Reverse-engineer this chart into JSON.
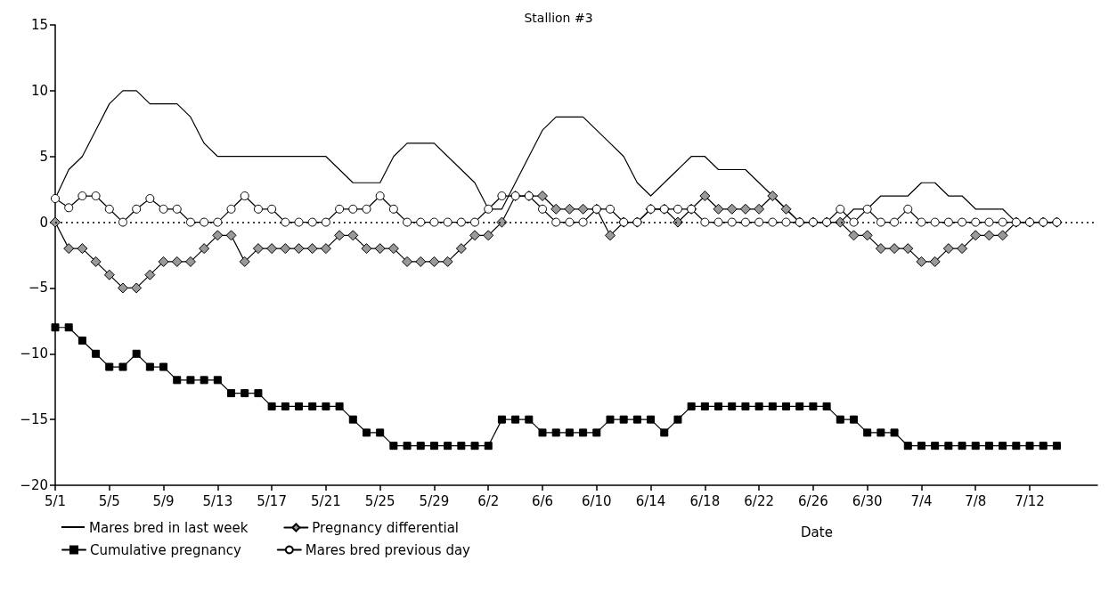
{
  "chart_data": {
    "type": "line",
    "title": "Stallion #3",
    "xlabel": "Date",
    "categories": [
      "5/1",
      null,
      null,
      null,
      "5/5",
      null,
      null,
      null,
      "5/9",
      null,
      null,
      null,
      "5/13",
      null,
      null,
      null,
      "5/17",
      null,
      null,
      null,
      "5/21",
      null,
      null,
      null,
      "5/25",
      null,
      null,
      null,
      "5/29",
      null,
      null,
      null,
      "6/2",
      null,
      null,
      null,
      "6/6",
      null,
      null,
      null,
      "6/10",
      null,
      null,
      null,
      "6/14",
      null,
      null,
      null,
      "6/18",
      null,
      null,
      null,
      "6/22",
      null,
      null,
      null,
      "6/26",
      null,
      null,
      null,
      "6/30",
      null,
      null,
      null,
      "7/4",
      null,
      null,
      null,
      "7/8",
      null,
      null,
      null,
      "7/12",
      null,
      null,
      null,
      null,
      null
    ],
    "series": [
      {
        "name": "Mares bred in last week",
        "color": "#000000",
        "marker": "none",
        "values": [
          1.8,
          4,
          5,
          7,
          9,
          10,
          10,
          9,
          9,
          9,
          8,
          6,
          5,
          5,
          5,
          5,
          5,
          5,
          5,
          5,
          5,
          4,
          3,
          3,
          3,
          5,
          6,
          6,
          6,
          5,
          4,
          3,
          1,
          1,
          3,
          5,
          7,
          8,
          8,
          8,
          7,
          6,
          5,
          3,
          2,
          3,
          4,
          5,
          5,
          4,
          4,
          4,
          3,
          2,
          1,
          0,
          0,
          0,
          0,
          1,
          1,
          2,
          2,
          2,
          3,
          3,
          2,
          2,
          1,
          1,
          1,
          0,
          0,
          0,
          0,
          null,
          null,
          null
        ]
      },
      {
        "name": "Pregnancy differential",
        "color": "#999999",
        "marker": "diamond",
        "values": [
          0,
          -2,
          -2,
          -3,
          -4,
          -5,
          -5,
          -4,
          -3,
          -3,
          -3,
          -2,
          -1,
          -1,
          -3,
          -2,
          -2,
          -2,
          -2,
          -2,
          -2,
          -1,
          -1,
          -2,
          -2,
          -2,
          -3,
          -3,
          -3,
          -3,
          -2,
          -1,
          -1,
          0,
          2,
          2,
          2,
          1,
          1,
          1,
          1,
          -1,
          0,
          0,
          1,
          1,
          0,
          1,
          2,
          1,
          1,
          1,
          1,
          2,
          1,
          0,
          0,
          0,
          0,
          -1,
          -1,
          -2,
          -2,
          -2,
          -3,
          -3,
          -2,
          -2,
          -1,
          -1,
          -1,
          0,
          0,
          0,
          0,
          null,
          null,
          null
        ]
      },
      {
        "name": "Cumulative pregnancy",
        "color": "#000000",
        "marker": "square",
        "values": [
          -8,
          -8,
          -9,
          -10,
          -11,
          -11,
          -10,
          -11,
          -11,
          -12,
          -12,
          -12,
          -12,
          -13,
          -13,
          -13,
          -14,
          -14,
          -14,
          -14,
          -14,
          -14,
          -15,
          -16,
          -16,
          -17,
          -17,
          -17,
          -17,
          -17,
          -17,
          -17,
          -17,
          -15,
          -15,
          -15,
          -16,
          -16,
          -16,
          -16,
          -16,
          -15,
          -15,
          -15,
          -15,
          -16,
          -15,
          -14,
          -14,
          -14,
          -14,
          -14,
          -14,
          -14,
          -14,
          -14,
          -14,
          -14,
          -15,
          -15,
          -16,
          -16,
          -16,
          -17,
          -17,
          -17,
          -17,
          -17,
          -17,
          -17,
          -17,
          -17,
          -17,
          -17,
          -17,
          null,
          null,
          null
        ]
      },
      {
        "name": "Mares bred previous day",
        "color": "#ffffff",
        "marker": "circle",
        "values": [
          1.8,
          1.1,
          2,
          2,
          1,
          0,
          1,
          1.8,
          1,
          1,
          0,
          0,
          0,
          1,
          2,
          1,
          1,
          0,
          0,
          0,
          0,
          1,
          1,
          1,
          2,
          1,
          0,
          0,
          0,
          0,
          0,
          0,
          1,
          2,
          2,
          2,
          1,
          0,
          0,
          0,
          1,
          1,
          0,
          0,
          1,
          1,
          1,
          1,
          0,
          0,
          0,
          0,
          0,
          0,
          0,
          0,
          0,
          0,
          1,
          0,
          1,
          0,
          0,
          1,
          0,
          0,
          0,
          0,
          0,
          0,
          0,
          0,
          0,
          0,
          0,
          null,
          null,
          null
        ]
      }
    ],
    "ylim": [
      -20,
      15
    ],
    "yticks": [
      {
        "value": -20,
        "label": "−20"
      },
      {
        "value": -15,
        "label": "−15"
      },
      {
        "value": -10,
        "label": "−10"
      },
      {
        "value": -5,
        "label": "−5"
      },
      0,
      5,
      10,
      15
    ],
    "ref_lines": [
      {
        "axis": "y",
        "value": 0,
        "color": "#000000",
        "line_style": "dotted"
      }
    ],
    "grid": false,
    "legend": "bottom left",
    "line_style": "solid"
  }
}
